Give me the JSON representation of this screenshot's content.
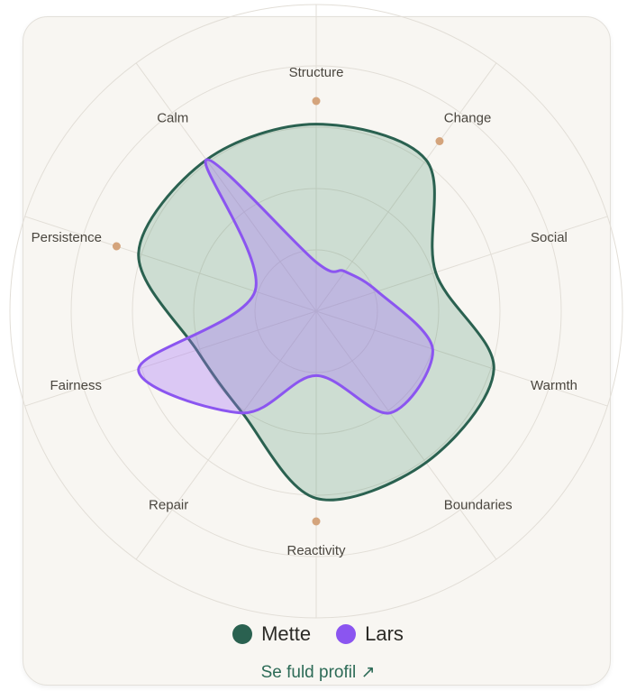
{
  "chart_data": {
    "type": "radar",
    "categories": [
      "Structure",
      "Change",
      "Social",
      "Warmth",
      "Boundaries",
      "Reactivity",
      "Repair",
      "Fairness",
      "Persistence",
      "Calm"
    ],
    "flagged_categories": [
      "Structure",
      "Change",
      "Reactivity",
      "Persistence"
    ],
    "scale_max": 1.0,
    "grid_levels": [
      0.2,
      0.4,
      0.6,
      0.8,
      1.0
    ],
    "series": [
      {
        "name": "Mette",
        "color": "#2a6150",
        "fill": "rgba(56,130,96,0.22)",
        "values": [
          0.61,
          0.61,
          0.41,
          0.61,
          0.61,
          0.61,
          0.41,
          0.41,
          0.61,
          0.61
        ]
      },
      {
        "name": "Lars",
        "color": "#8b55f0",
        "fill": "rgba(167,115,250,0.35)",
        "values": [
          0.16,
          0.16,
          0.21,
          0.4,
          0.41,
          0.21,
          0.41,
          0.61,
          0.21,
          0.61
        ]
      }
    ],
    "flag_color": "#d4a47c"
  },
  "legend": {
    "items": [
      {
        "label": "Mette",
        "color": "#2a6150"
      },
      {
        "label": "Lars",
        "color": "#8b55f0"
      }
    ]
  },
  "link": {
    "label": "Se fuld profil",
    "arrow": "↗"
  }
}
